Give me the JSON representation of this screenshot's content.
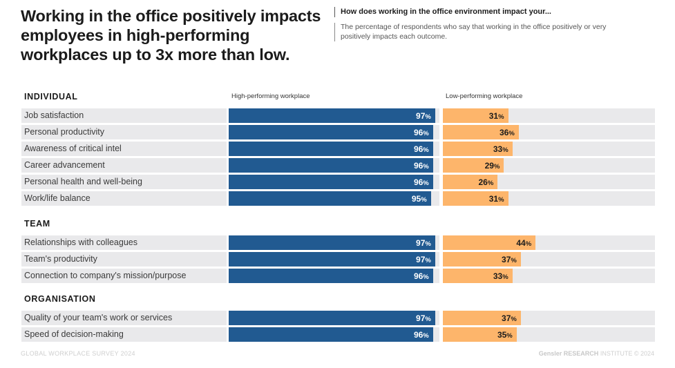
{
  "header": {
    "title": "Working in the office positively impacts employees in high-performing workplaces up to 3x more than low.",
    "question": "How does working in the office environment impact your...",
    "description": "The percentage of respondents who say that working in the office positively or very positively impacts each outcome."
  },
  "columns": {
    "high": "High-performing workplace",
    "low": "Low-performing workplace"
  },
  "colors": {
    "high": "#215a91",
    "low": "#fdb56b",
    "track": "#e9e9eb"
  },
  "footer": {
    "left": "GLOBAL WORKPLACE SURVEY 2024",
    "brand": "Gensler RESEARCH",
    "institute": "INSTITUTE",
    "copyright": "© 2024"
  },
  "chart_data": {
    "type": "bar",
    "orientation": "horizontal",
    "title": "Working in the office positively impacts employees in high-performing workplaces up to 3x more than low.",
    "subtitle": "How does working in the office environment impact your...",
    "unit": "%",
    "xlim": [
      0,
      100
    ],
    "grid": false,
    "legend": "column-headers-top",
    "series_names": [
      "High-performing workplace",
      "Low-performing workplace"
    ],
    "groups": [
      {
        "name": "INDIVIDUAL",
        "items": [
          {
            "label": "Job satisfaction",
            "high": 97,
            "low": 31
          },
          {
            "label": "Personal productivity",
            "high": 96,
            "low": 36
          },
          {
            "label": "Awareness of critical intel",
            "high": 96,
            "low": 33
          },
          {
            "label": "Career advancement",
            "high": 96,
            "low": 29
          },
          {
            "label": "Personal health and well-being",
            "high": 96,
            "low": 26
          },
          {
            "label": "Work/life balance",
            "high": 95,
            "low": 31
          }
        ]
      },
      {
        "name": "TEAM",
        "items": [
          {
            "label": "Relationships with colleagues",
            "high": 97,
            "low": 44
          },
          {
            "label": "Team's productivity",
            "high": 97,
            "low": 37
          },
          {
            "label": "Connection to company's mission/purpose",
            "high": 96,
            "low": 33
          }
        ]
      },
      {
        "name": "ORGANISATION",
        "items": [
          {
            "label": "Quality of your team's work or services",
            "high": 97,
            "low": 37
          },
          {
            "label": "Speed of decision-making",
            "high": 96,
            "low": 35
          }
        ]
      }
    ]
  }
}
